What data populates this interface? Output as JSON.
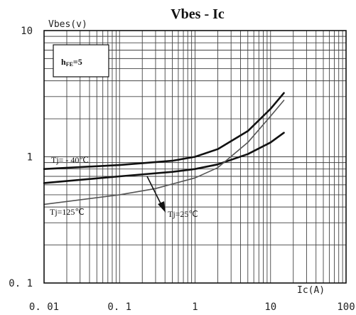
{
  "chart_data": {
    "type": "line",
    "title": "Vbes - Ic",
    "ylabel": "Vbes(v)",
    "xlabel": "Ic(A)",
    "x_scale": "log",
    "y_scale": "log",
    "xlim": [
      0.01,
      100
    ],
    "ylim": [
      0.1,
      10
    ],
    "grid": true,
    "x_ticks": [
      "0. 01",
      "0. 1",
      "1",
      "10",
      "100"
    ],
    "y_ticks": [
      "10",
      "1",
      "0. 1"
    ],
    "legend": {
      "placement": "top-left",
      "text": "h",
      "subscript": "FE",
      "suffix": "=5"
    },
    "series": [
      {
        "name": "Tj= - 40℃",
        "color": "#111111",
        "x": [
          0.01,
          0.1,
          0.5,
          1,
          2,
          5,
          10,
          15
        ],
        "y": [
          0.8,
          0.86,
          0.93,
          1.0,
          1.15,
          1.6,
          2.4,
          3.2
        ]
      },
      {
        "name": "Tj=25℃",
        "color": "#111111",
        "x": [
          0.01,
          0.1,
          0.5,
          1,
          2,
          5,
          10,
          15
        ],
        "y": [
          0.62,
          0.7,
          0.76,
          0.8,
          0.87,
          1.05,
          1.3,
          1.55
        ]
      },
      {
        "name": "Tj=125℃",
        "color": "#555555",
        "x": [
          0.01,
          0.1,
          0.3,
          1,
          2,
          5,
          10,
          15
        ],
        "y": [
          0.42,
          0.5,
          0.56,
          0.68,
          0.82,
          1.3,
          2.1,
          2.8
        ]
      }
    ]
  }
}
